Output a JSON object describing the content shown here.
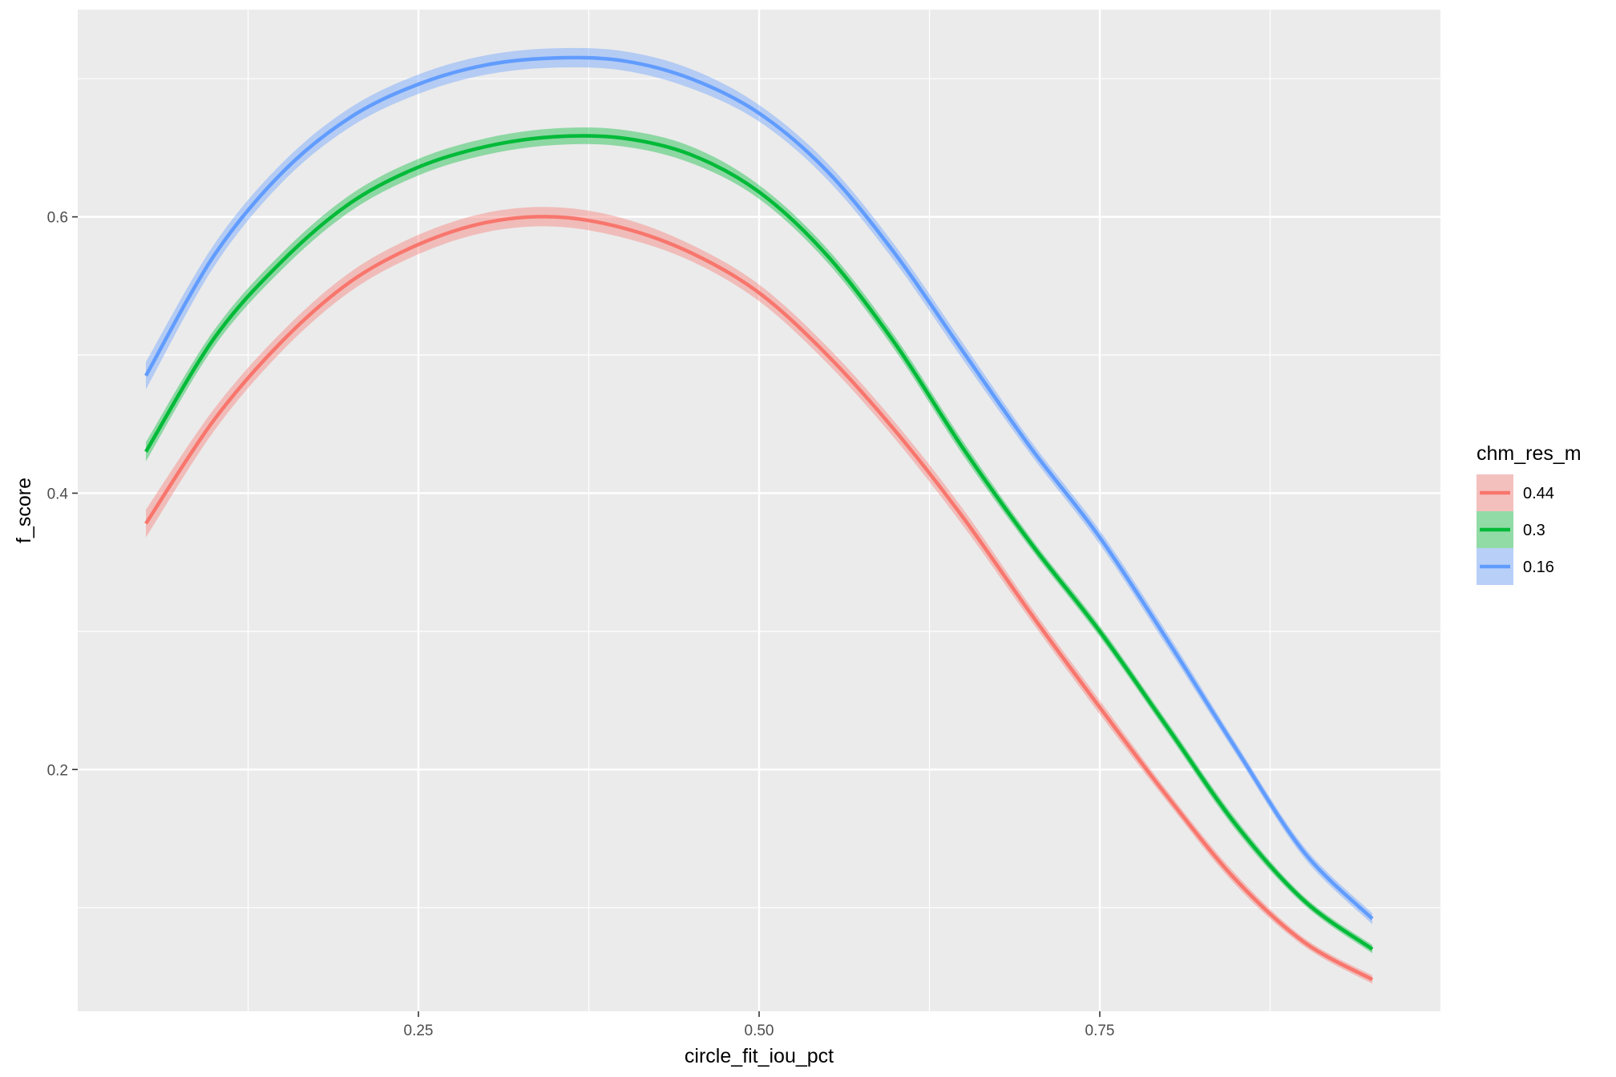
{
  "chart_data": {
    "type": "line",
    "xlabel": "circle_fit_iou_pct",
    "ylabel": "f_score",
    "xlim": [
      0.0,
      1.0
    ],
    "ylim": [
      0.025,
      0.75
    ],
    "x_ticks": [
      0.25,
      0.5,
      0.75
    ],
    "x_tick_labels": [
      "0.25",
      "0.50",
      "0.75"
    ],
    "y_ticks": [
      0.2,
      0.4,
      0.6
    ],
    "y_tick_labels": [
      "0.2",
      "0.4",
      "0.6"
    ],
    "grid": true,
    "panel_background": "#EBEBEB",
    "legend": {
      "title": "chm_res_m",
      "position": "right"
    },
    "x": [
      0.05,
      0.1,
      0.15,
      0.2,
      0.25,
      0.3,
      0.35,
      0.4,
      0.45,
      0.5,
      0.55,
      0.6,
      0.65,
      0.7,
      0.75,
      0.8,
      0.85,
      0.9,
      0.95
    ],
    "series": [
      {
        "name": "0.44",
        "color": "#F8766D",
        "values": [
          0.378,
          0.453,
          0.51,
          0.553,
          0.58,
          0.596,
          0.6,
          0.592,
          0.574,
          0.545,
          0.5,
          0.445,
          0.382,
          0.312,
          0.245,
          0.18,
          0.12,
          0.075,
          0.048
        ],
        "ci": [
          0.01,
          0.008,
          0.007,
          0.007,
          0.007,
          0.007,
          0.007,
          0.007,
          0.006,
          0.006,
          0.006,
          0.006,
          0.006,
          0.005,
          0.005,
          0.004,
          0.004,
          0.003,
          0.003
        ]
      },
      {
        "name": "0.3",
        "color": "#00BA38",
        "values": [
          0.43,
          0.512,
          0.568,
          0.61,
          0.636,
          0.651,
          0.658,
          0.657,
          0.645,
          0.618,
          0.572,
          0.508,
          0.432,
          0.363,
          0.3,
          0.23,
          0.16,
          0.105,
          0.07
        ],
        "ci": [
          0.007,
          0.006,
          0.006,
          0.006,
          0.006,
          0.006,
          0.006,
          0.006,
          0.006,
          0.005,
          0.005,
          0.005,
          0.005,
          0.004,
          0.004,
          0.004,
          0.004,
          0.003,
          0.003
        ]
      },
      {
        "name": "0.16",
        "color": "#619CFF",
        "values": [
          0.485,
          0.572,
          0.632,
          0.672,
          0.696,
          0.71,
          0.715,
          0.713,
          0.7,
          0.675,
          0.633,
          0.573,
          0.502,
          0.432,
          0.368,
          0.293,
          0.215,
          0.14,
          0.092
        ],
        "ci": [
          0.01,
          0.008,
          0.007,
          0.007,
          0.007,
          0.007,
          0.007,
          0.007,
          0.007,
          0.006,
          0.006,
          0.006,
          0.006,
          0.005,
          0.005,
          0.005,
          0.004,
          0.004,
          0.004
        ]
      }
    ]
  }
}
